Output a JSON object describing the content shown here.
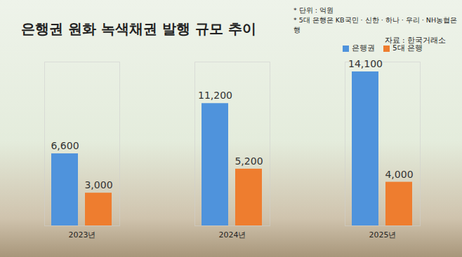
{
  "chart_data": {
    "type": "bar",
    "title": "은행권 원화 녹색채권 발행 규모 추이",
    "annotations": [
      "* 단위 : 억원",
      "* 5대 은행은 KB국민 · 신한 · 하나 · 우리 · NH농협은행",
      "자료 : 한국거래소"
    ],
    "categories": [
      "2023년",
      "2024년",
      "2025년"
    ],
    "series": [
      {
        "name": "은행권",
        "color": "#4f93dc",
        "values": [
          6600,
          11200,
          14100
        ],
        "value_labels": [
          "6,600",
          "11,200",
          "14,100"
        ]
      },
      {
        "name": "5대 은행",
        "color": "#ee7d2f",
        "values": [
          3000,
          5200,
          4000
        ],
        "value_labels": [
          "3,000",
          "5,200",
          "4,000"
        ]
      }
    ],
    "ylim": [
      0,
      15000
    ],
    "grid": false,
    "legend": "top-right",
    "data_labels": true,
    "tick_labels": "x"
  }
}
